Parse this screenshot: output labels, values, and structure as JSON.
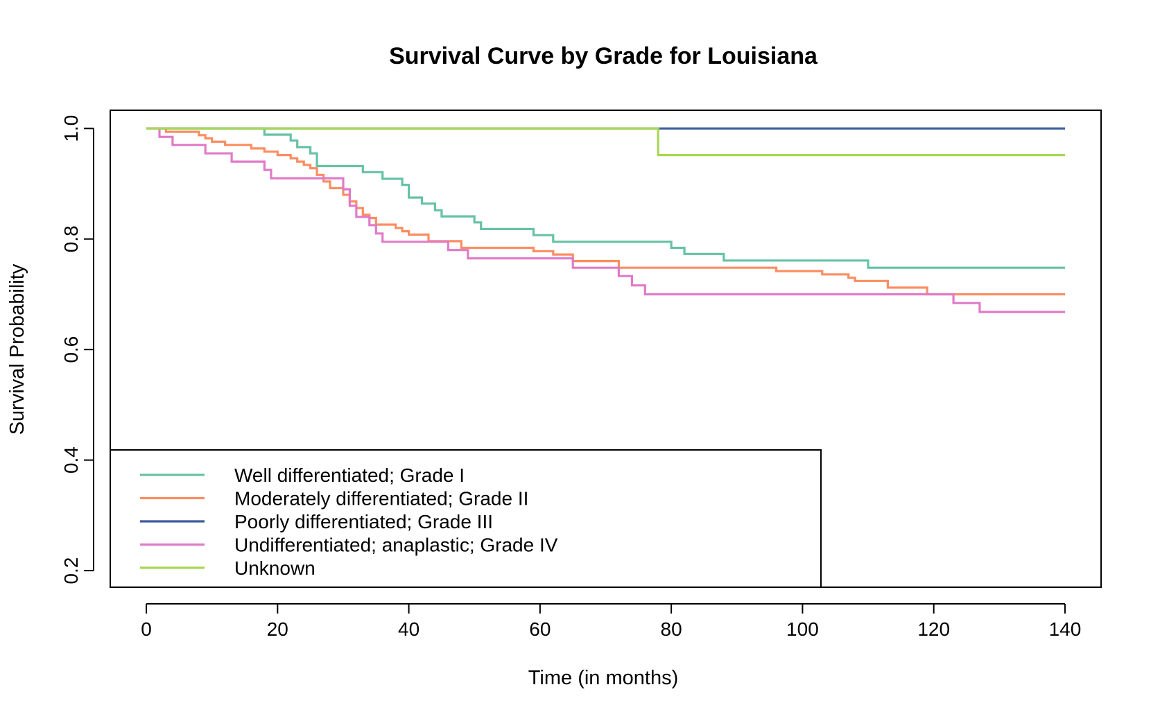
{
  "chart_data": {
    "type": "line",
    "step": true,
    "title": "Survival Curve by Grade for Louisiana",
    "xlabel": "Time (in months)",
    "ylabel": "Survival Probability",
    "xlim": [
      -5.5,
      145.5
    ],
    "ylim": [
      0.17,
      1.033
    ],
    "xticks": [
      0,
      20,
      40,
      60,
      80,
      100,
      120,
      140
    ],
    "yticks": [
      0.2,
      0.4,
      0.6,
      0.8,
      1.0
    ],
    "xtick_labels": [
      "0",
      "20",
      "40",
      "60",
      "80",
      "100",
      "120",
      "140"
    ],
    "ytick_labels": [
      "0.2",
      "0.4",
      "0.6",
      "0.8",
      "1.0"
    ],
    "grid": false,
    "legend_position": "bottom-left",
    "series": [
      {
        "name": "Well differentiated; Grade I",
        "color": "#66c2a5",
        "x": [
          0,
          18,
          22,
          23,
          25,
          26,
          33,
          36,
          39,
          40,
          42,
          44,
          45,
          50,
          51,
          59,
          62,
          80,
          82,
          88,
          110,
          140
        ],
        "y": [
          1.0,
          0.989,
          0.978,
          0.966,
          0.955,
          0.932,
          0.921,
          0.909,
          0.898,
          0.875,
          0.864,
          0.852,
          0.841,
          0.83,
          0.818,
          0.807,
          0.795,
          0.784,
          0.773,
          0.761,
          0.748,
          0.748
        ]
      },
      {
        "name": "Moderately differentiated; Grade II",
        "color": "#fc8d62",
        "x": [
          0,
          3,
          8,
          9,
          10,
          12,
          16,
          18,
          20,
          22,
          23,
          24,
          25,
          26,
          27,
          28,
          30,
          31,
          32,
          33,
          34,
          35,
          38,
          39,
          40,
          43,
          48,
          59,
          62,
          65,
          72,
          96,
          103,
          107,
          108,
          113,
          119,
          140
        ],
        "y": [
          1.0,
          0.994,
          0.988,
          0.982,
          0.976,
          0.97,
          0.964,
          0.958,
          0.952,
          0.946,
          0.94,
          0.934,
          0.928,
          0.916,
          0.904,
          0.892,
          0.88,
          0.868,
          0.856,
          0.844,
          0.838,
          0.826,
          0.82,
          0.814,
          0.808,
          0.796,
          0.784,
          0.778,
          0.772,
          0.76,
          0.748,
          0.742,
          0.736,
          0.73,
          0.724,
          0.712,
          0.7,
          0.7
        ]
      },
      {
        "name": "Poorly differentiated; Grade III",
        "color": "#3b5b9c",
        "x": [
          0,
          140
        ],
        "y": [
          1.0,
          1.0
        ]
      },
      {
        "name": "Undifferentiated; anaplastic; Grade IV",
        "color": "#e07bc8",
        "x": [
          0,
          2,
          4,
          9,
          13,
          18,
          19,
          30,
          31,
          32,
          34,
          35,
          36,
          46,
          49,
          65,
          72,
          74,
          76,
          123,
          127,
          140
        ],
        "y": [
          1.0,
          0.985,
          0.97,
          0.955,
          0.94,
          0.925,
          0.91,
          0.89,
          0.86,
          0.84,
          0.825,
          0.81,
          0.795,
          0.78,
          0.765,
          0.748,
          0.733,
          0.716,
          0.7,
          0.684,
          0.668,
          0.668
        ]
      },
      {
        "name": "Unknown",
        "color": "#a6d854",
        "x": [
          0,
          78,
          140
        ],
        "y": [
          1.0,
          0.952,
          0.952
        ]
      }
    ]
  }
}
